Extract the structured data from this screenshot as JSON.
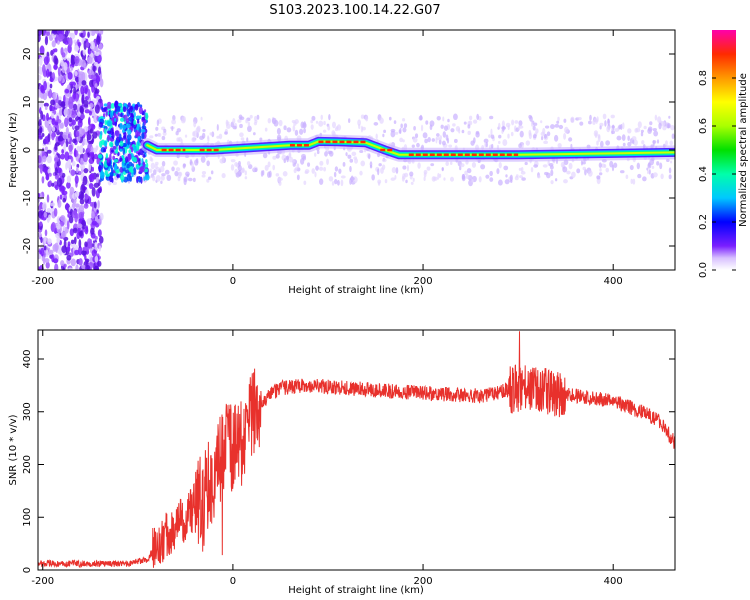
{
  "title": "S103.2023.100.14.22.G07",
  "chart_data": [
    {
      "type": "heatmap",
      "xlabel": "Height of straight line (km)",
      "ylabel": "Frequency (Hz)",
      "xlim": [
        -205,
        465
      ],
      "ylim": [
        -25,
        25
      ],
      "xticks": [
        -200,
        0,
        200,
        400
      ],
      "yticks": [
        -20,
        -10,
        0,
        10,
        20
      ],
      "colorbar": {
        "label": "Normalized spectral amplitude",
        "range": [
          0,
          1
        ],
        "ticks": [
          0.0,
          0.2,
          0.4,
          0.6,
          0.8
        ]
      },
      "ridge": [
        {
          "x": -160,
          "freq": 0
        },
        {
          "x": -140,
          "freq": 0
        },
        {
          "x": -130,
          "freq": -1
        },
        {
          "x": -120,
          "freq": 1
        },
        {
          "x": -110,
          "freq": 2
        },
        {
          "x": -100,
          "freq": 3
        },
        {
          "x": -90,
          "freq": 1
        },
        {
          "x": -80,
          "freq": 0
        },
        {
          "x": -60,
          "freq": 0
        },
        {
          "x": -20,
          "freq": 0
        },
        {
          "x": 20,
          "freq": 0.5
        },
        {
          "x": 60,
          "freq": 1
        },
        {
          "x": 80,
          "freq": 1
        },
        {
          "x": 90,
          "freq": 1.8
        },
        {
          "x": 110,
          "freq": 1.7
        },
        {
          "x": 140,
          "freq": 1.5
        },
        {
          "x": 160,
          "freq": 0
        },
        {
          "x": 175,
          "freq": -1
        },
        {
          "x": 200,
          "freq": -1
        },
        {
          "x": 260,
          "freq": -1
        },
        {
          "x": 300,
          "freq": -1
        },
        {
          "x": 400,
          "freq": -0.7
        },
        {
          "x": 465,
          "freq": -0.5
        }
      ]
    },
    {
      "type": "line",
      "xlabel": "Height of straight line (km)",
      "ylabel": "SNR (10 * v/v)",
      "xlim": [
        -205,
        465
      ],
      "ylim": [
        0,
        455
      ],
      "xticks": [
        -200,
        0,
        200,
        400
      ],
      "yticks": [
        0,
        100,
        200,
        300,
        400
      ],
      "series": [
        {
          "name": "SNR",
          "color": "#e8312c",
          "x": [
            -205,
            -150,
            -110,
            -90,
            -80,
            -60,
            -40,
            -20,
            -10,
            0,
            10,
            20,
            30,
            50,
            80,
            120,
            200,
            260,
            300,
            320,
            340,
            360,
            400,
            430,
            450,
            465
          ],
          "y": [
            12,
            12,
            12,
            20,
            50,
            80,
            120,
            180,
            230,
            230,
            240,
            290,
            320,
            345,
            350,
            345,
            335,
            330,
            345,
            340,
            335,
            330,
            320,
            300,
            280,
            240
          ]
        }
      ]
    }
  ]
}
